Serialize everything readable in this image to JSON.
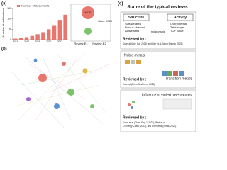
{
  "chart_data": {
    "type": "bar",
    "ylabel": "Number of publications",
    "categories": [
      "2015",
      null,
      "2017",
      null,
      "2019",
      null,
      "2021",
      null,
      "2023",
      null
    ],
    "series": [
      {
        "name": "Number of documents",
        "color": "#e8766d",
        "values": [
          5,
          8,
          12,
          18,
          26,
          36,
          50,
          70,
          95,
          120
        ]
      }
    ],
    "ylim": [
      0,
      150
    ],
    "yticks": [
      0,
      50,
      100,
      150
    ],
    "grid": false
  },
  "figure": {
    "panels": [
      "(a)",
      "(b)",
      "(c)"
    ],
    "inset": {
      "note": "Since 2023",
      "big": "MOF",
      "bar_labels": [
        "Review-E1",
        "Review-E2"
      ]
    },
    "reviews": {
      "title": "Some of the typical reviews",
      "box1": {
        "structure": "Structure",
        "activity": "Activity",
        "link": "relationship",
        "left": [
          "Surface area",
          "Porous channel",
          "Active sites"
        ],
        "right": [
          "Overpotential",
          "Tafel slope",
          "TOF value"
        ],
        "by": "Reviewed by :",
        "ref": "Du et al.(Adv. Sci. 2023) and Han et al.(Nano Energy, 2023)"
      },
      "box2": {
        "top": "Noble metals",
        "bottom": "Transition metals",
        "by": "Reviewed by :",
        "ref": "Hu et al.(ChemSusChem, 2023)"
      },
      "box3": {
        "title": "Influence of varied heteroatoms",
        "by": "Reviewed by :",
        "ref1": "Kwon et al.(Chem Eng J, 2023), Park et al.",
        "ref2": "(J Energy Chem, 2023), and Chen et al.(Small, 2023)"
      }
    }
  }
}
